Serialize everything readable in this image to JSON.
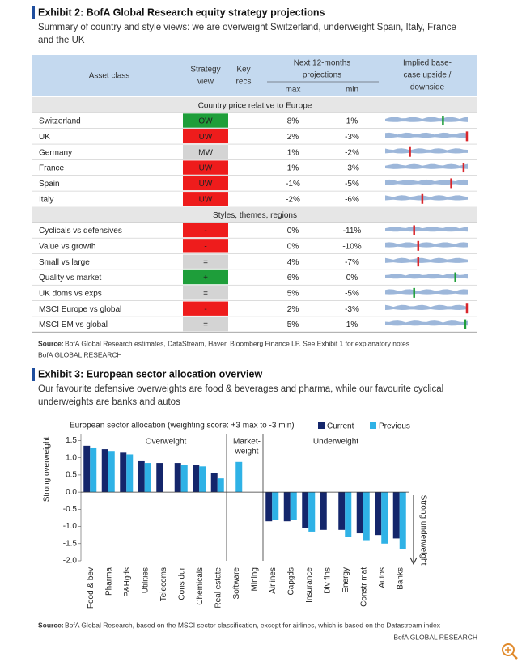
{
  "exhibit2": {
    "title": "Exhibit 2: BofA Global Research equity strategy projections",
    "subtitle": [
      "Summary of country and style views: we are overweight Switzerland, underweight Spain, Italy, France",
      "and the UK"
    ],
    "header": {
      "asset": "Asset class",
      "view": [
        "Strategy",
        "view"
      ],
      "recs": [
        "Key",
        "recs"
      ],
      "proj": [
        "Next 12-months",
        "projections"
      ],
      "max": "max",
      "min": "min",
      "implied": [
        "Implied base-",
        "case upside /",
        "downside"
      ]
    },
    "sections": [
      {
        "title": "Country price relative to Europe",
        "rows": [
          {
            "asset": "Switzerland",
            "view": "OW",
            "view_color": "#1e9e3a",
            "max": "8%",
            "min": "1%",
            "marker": 0.7,
            "marker_color": "#1e9e3a"
          },
          {
            "asset": "UK",
            "view": "UW",
            "view_color": "#ee1c1c",
            "max": "2%",
            "min": "-3%",
            "marker": 0.99,
            "marker_color": "#d9262b"
          },
          {
            "asset": "Germany",
            "view": "MW",
            "view_color": "#d4d4d4",
            "max": "1%",
            "min": "-2%",
            "marker": 0.3,
            "marker_color": "#d9262b"
          },
          {
            "asset": "France",
            "view": "UW",
            "view_color": "#ee1c1c",
            "max": "1%",
            "min": "-3%",
            "marker": 0.95,
            "marker_color": "#d9262b"
          },
          {
            "asset": "Spain",
            "view": "UW",
            "view_color": "#ee1c1c",
            "max": "-1%",
            "min": "-5%",
            "marker": 0.8,
            "marker_color": "#d9262b"
          },
          {
            "asset": "Italy",
            "view": "UW",
            "view_color": "#ee1c1c",
            "max": "-2%",
            "min": "-6%",
            "marker": 0.45,
            "marker_color": "#d9262b"
          }
        ]
      },
      {
        "title": "Styles, themes, regions",
        "rows": [
          {
            "asset": "Cyclicals vs defensives",
            "view": "-",
            "view_color": "#ee1c1c",
            "max": "0%",
            "min": "-11%",
            "marker": 0.35,
            "marker_color": "#d9262b"
          },
          {
            "asset": "Value vs growth",
            "view": "-",
            "view_color": "#ee1c1c",
            "max": "0%",
            "min": "-10%",
            "marker": 0.4,
            "marker_color": "#d9262b"
          },
          {
            "asset": "Small vs large",
            "view": "=",
            "view_color": "#d4d4d4",
            "max": "4%",
            "min": "-7%",
            "marker": 0.4,
            "marker_color": "#d9262b"
          },
          {
            "asset": "Quality vs market",
            "view": "+",
            "view_color": "#1e9e3a",
            "max": "6%",
            "min": "0%",
            "marker": 0.85,
            "marker_color": "#1e9e3a"
          },
          {
            "asset": "UK doms vs exps",
            "view": "=",
            "view_color": "#d4d4d4",
            "max": "5%",
            "min": "-5%",
            "marker": 0.35,
            "marker_color": "#1e9e3a"
          },
          {
            "asset": "MSCI Europe vs global",
            "view": "-",
            "view_color": "#ee1c1c",
            "max": "2%",
            "min": "-3%",
            "marker": 0.99,
            "marker_color": "#d9262b"
          },
          {
            "asset": "MSCI EM vs global",
            "view": "=",
            "view_color": "#d4d4d4",
            "max": "5%",
            "min": "1%",
            "marker": 0.97,
            "marker_color": "#1e9e3a"
          }
        ]
      }
    ],
    "source_label": "Source:",
    "source": "BofA Global Research estimates, DataStream, Haver, Bloomberg Finance LP. See Exhibit 1 for explanatory notes",
    "brand": "BofA GLOBAL RESEARCH"
  },
  "exhibit3": {
    "title": "Exhibit 3: European sector allocation overview",
    "subtitle": [
      "Our favourite defensive overweights are food & beverages and pharma, while our favourite cyclical",
      "underweights are banks and autos"
    ],
    "source_label": "Source:",
    "source": "BofA Global Research, based on the MSCI sector classification, except for airlines, which is based on the Datastream index",
    "brand": "BofA GLOBAL RESEARCH"
  },
  "chart_data": {
    "type": "bar",
    "title": "European sector allocation (weighting score: +3 max to -3 min)",
    "annotations": [
      "Overweight",
      "Market-",
      "weight",
      "Underweight"
    ],
    "ylabel": "Strong overweight",
    "y2label": "Strong underweight",
    "categories": [
      "Food & bev",
      "Pharma",
      "P&Hgds",
      "Utilities",
      "Telecoms",
      "Cons dur",
      "Chemicals",
      "Real estate",
      "Software",
      "Mining",
      "Airlines",
      "Capgds",
      "Insurance",
      "Div fins",
      "Energy",
      "Constr mat",
      "Autos",
      "Banks"
    ],
    "series": [
      {
        "name": "Current",
        "color": "#14266b",
        "values": [
          1.35,
          1.25,
          1.15,
          0.9,
          0.85,
          0.85,
          0.8,
          0.55,
          null,
          null,
          -0.85,
          -0.85,
          -1.05,
          -1.1,
          -1.1,
          -1.2,
          -1.25,
          -1.35
        ]
      },
      {
        "name": "Previous",
        "color": "#2fb2e6",
        "values": [
          1.3,
          1.2,
          1.1,
          0.85,
          null,
          0.8,
          0.75,
          0.4,
          0.88,
          null,
          -0.8,
          -0.8,
          -1.15,
          null,
          -1.3,
          -1.4,
          -1.5,
          -1.65
        ]
      }
    ],
    "ylim": [
      -2,
      1.7
    ],
    "yticks": [
      1.5,
      {
        "value": 1,
        "label": "1.0"
      },
      0.5,
      {
        "value": 0,
        "label": "0.0"
      },
      -0.5,
      {
        "value": -1,
        "label": "-1.0"
      },
      -1.5,
      {
        "value": -2,
        "label": "-2.0"
      }
    ],
    "legend": "top-right"
  }
}
